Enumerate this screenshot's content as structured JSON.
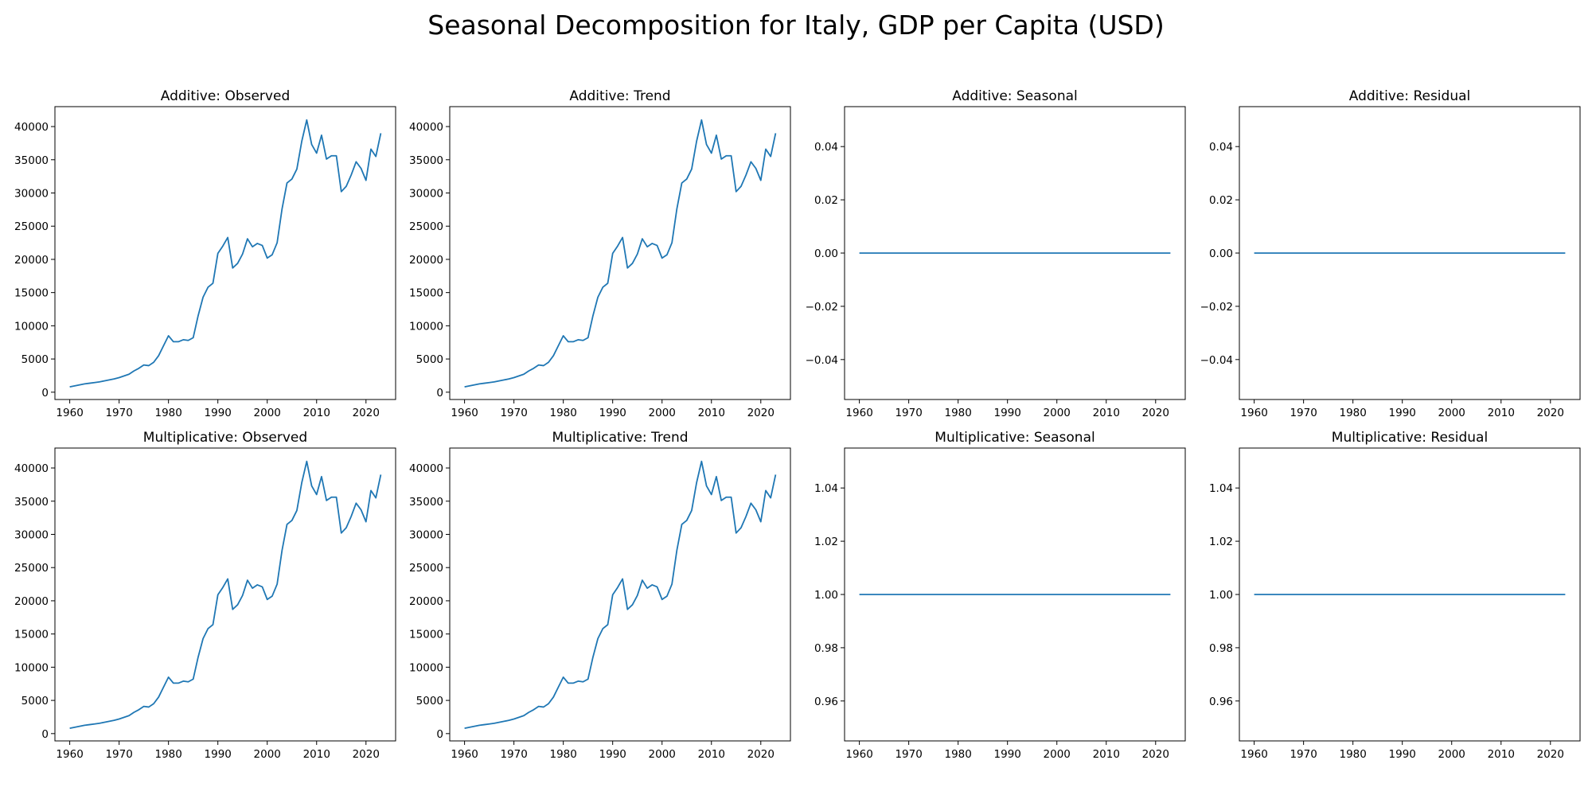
{
  "figure": {
    "title": "Seasonal Decomposition for Italy, GDP per Capita (USD)",
    "line_color": "#1f77b4"
  },
  "chart_data": [
    {
      "type": "line",
      "title": "Additive: Observed",
      "xlabel": "",
      "ylabel": "",
      "xlim": [
        1957,
        2026
      ],
      "ylim": [
        -1100,
        43000
      ],
      "xticks": [
        1960,
        1970,
        1980,
        1990,
        2000,
        2010,
        2020
      ],
      "yticks": [
        0,
        5000,
        10000,
        15000,
        20000,
        25000,
        30000,
        35000,
        40000
      ],
      "ytick_labels": [
        "0",
        "5000",
        "10000",
        "15000",
        "20000",
        "25000",
        "30000",
        "35000",
        "40000"
      ],
      "grid": false,
      "series": [
        {
          "x": [
            1960,
            1961,
            1962,
            1963,
            1964,
            1965,
            1966,
            1967,
            1968,
            1969,
            1970,
            1971,
            1972,
            1973,
            1974,
            1975,
            1976,
            1977,
            1978,
            1979,
            1980,
            1981,
            1982,
            1983,
            1984,
            1985,
            1986,
            1987,
            1988,
            1989,
            1990,
            1991,
            1992,
            1993,
            1994,
            1995,
            1996,
            1997,
            1998,
            1999,
            2000,
            2001,
            2002,
            2003,
            2004,
            2005,
            2006,
            2007,
            2008,
            2009,
            2010,
            2011,
            2012,
            2013,
            2014,
            2015,
            2016,
            2017,
            2018,
            2019,
            2020,
            2021,
            2022,
            2023
          ],
          "values": [
            800,
            950,
            1100,
            1250,
            1350,
            1450,
            1550,
            1700,
            1850,
            2000,
            2200,
            2450,
            2700,
            3200,
            3600,
            4100,
            4000,
            4500,
            5500,
            7000,
            8500,
            7600,
            7600,
            7900,
            7800,
            8200,
            11500,
            14300,
            15800,
            16400,
            20900,
            22000,
            23300,
            18700,
            19400,
            20800,
            23100,
            21900,
            22400,
            22100,
            20200,
            20700,
            22500,
            27600,
            31500,
            32100,
            33600,
            37800,
            41000,
            37300,
            36000,
            38700,
            35100,
            35600,
            35600,
            30200,
            31000,
            32700,
            34700,
            33700,
            31900,
            36600,
            35500,
            39000
          ]
        }
      ]
    },
    {
      "type": "line",
      "title": "Additive: Trend",
      "xlabel": "",
      "ylabel": "",
      "xlim": [
        1957,
        2026
      ],
      "ylim": [
        -1100,
        43000
      ],
      "xticks": [
        1960,
        1970,
        1980,
        1990,
        2000,
        2010,
        2020
      ],
      "yticks": [
        0,
        5000,
        10000,
        15000,
        20000,
        25000,
        30000,
        35000,
        40000
      ],
      "ytick_labels": [
        "0",
        "5000",
        "10000",
        "15000",
        "20000",
        "25000",
        "30000",
        "35000",
        "40000"
      ],
      "grid": false,
      "series": [
        {
          "x": [
            1960,
            1961,
            1962,
            1963,
            1964,
            1965,
            1966,
            1967,
            1968,
            1969,
            1970,
            1971,
            1972,
            1973,
            1974,
            1975,
            1976,
            1977,
            1978,
            1979,
            1980,
            1981,
            1982,
            1983,
            1984,
            1985,
            1986,
            1987,
            1988,
            1989,
            1990,
            1991,
            1992,
            1993,
            1994,
            1995,
            1996,
            1997,
            1998,
            1999,
            2000,
            2001,
            2002,
            2003,
            2004,
            2005,
            2006,
            2007,
            2008,
            2009,
            2010,
            2011,
            2012,
            2013,
            2014,
            2015,
            2016,
            2017,
            2018,
            2019,
            2020,
            2021,
            2022,
            2023
          ],
          "values": [
            800,
            950,
            1100,
            1250,
            1350,
            1450,
            1550,
            1700,
            1850,
            2000,
            2200,
            2450,
            2700,
            3200,
            3600,
            4100,
            4000,
            4500,
            5500,
            7000,
            8500,
            7600,
            7600,
            7900,
            7800,
            8200,
            11500,
            14300,
            15800,
            16400,
            20900,
            22000,
            23300,
            18700,
            19400,
            20800,
            23100,
            21900,
            22400,
            22100,
            20200,
            20700,
            22500,
            27600,
            31500,
            32100,
            33600,
            37800,
            41000,
            37300,
            36000,
            38700,
            35100,
            35600,
            35600,
            30200,
            31000,
            32700,
            34700,
            33700,
            31900,
            36600,
            35500,
            39000
          ]
        }
      ]
    },
    {
      "type": "line",
      "title": "Additive: Seasonal",
      "xlabel": "",
      "ylabel": "",
      "xlim": [
        1957,
        2026
      ],
      "ylim": [
        -0.055,
        0.055
      ],
      "xticks": [
        1960,
        1970,
        1980,
        1990,
        2000,
        2010,
        2020
      ],
      "yticks": [
        -0.04,
        -0.02,
        0,
        0.02,
        0.04
      ],
      "ytick_labels": [
        "−0.04",
        "−0.02",
        "0.00",
        "0.02",
        "0.04"
      ],
      "grid": false,
      "series": [
        {
          "x": [
            1960,
            2023
          ],
          "values": [
            0,
            0
          ]
        }
      ]
    },
    {
      "type": "line",
      "title": "Additive: Residual",
      "xlabel": "",
      "ylabel": "",
      "xlim": [
        1957,
        2026
      ],
      "ylim": [
        -0.055,
        0.055
      ],
      "xticks": [
        1960,
        1970,
        1980,
        1990,
        2000,
        2010,
        2020
      ],
      "yticks": [
        -0.04,
        -0.02,
        0,
        0.02,
        0.04
      ],
      "ytick_labels": [
        "−0.04",
        "−0.02",
        "0.00",
        "0.02",
        "0.04"
      ],
      "grid": false,
      "series": [
        {
          "x": [
            1960,
            2023
          ],
          "values": [
            0,
            0
          ]
        }
      ]
    },
    {
      "type": "line",
      "title": "Multiplicative: Observed",
      "xlabel": "",
      "ylabel": "",
      "xlim": [
        1957,
        2026
      ],
      "ylim": [
        -1100,
        43000
      ],
      "xticks": [
        1960,
        1970,
        1980,
        1990,
        2000,
        2010,
        2020
      ],
      "yticks": [
        0,
        5000,
        10000,
        15000,
        20000,
        25000,
        30000,
        35000,
        40000
      ],
      "ytick_labels": [
        "0",
        "5000",
        "10000",
        "15000",
        "20000",
        "25000",
        "30000",
        "35000",
        "40000"
      ],
      "grid": false,
      "series": [
        {
          "x": [
            1960,
            1961,
            1962,
            1963,
            1964,
            1965,
            1966,
            1967,
            1968,
            1969,
            1970,
            1971,
            1972,
            1973,
            1974,
            1975,
            1976,
            1977,
            1978,
            1979,
            1980,
            1981,
            1982,
            1983,
            1984,
            1985,
            1986,
            1987,
            1988,
            1989,
            1990,
            1991,
            1992,
            1993,
            1994,
            1995,
            1996,
            1997,
            1998,
            1999,
            2000,
            2001,
            2002,
            2003,
            2004,
            2005,
            2006,
            2007,
            2008,
            2009,
            2010,
            2011,
            2012,
            2013,
            2014,
            2015,
            2016,
            2017,
            2018,
            2019,
            2020,
            2021,
            2022,
            2023
          ],
          "values": [
            800,
            950,
            1100,
            1250,
            1350,
            1450,
            1550,
            1700,
            1850,
            2000,
            2200,
            2450,
            2700,
            3200,
            3600,
            4100,
            4000,
            4500,
            5500,
            7000,
            8500,
            7600,
            7600,
            7900,
            7800,
            8200,
            11500,
            14300,
            15800,
            16400,
            20900,
            22000,
            23300,
            18700,
            19400,
            20800,
            23100,
            21900,
            22400,
            22100,
            20200,
            20700,
            22500,
            27600,
            31500,
            32100,
            33600,
            37800,
            41000,
            37300,
            36000,
            38700,
            35100,
            35600,
            35600,
            30200,
            31000,
            32700,
            34700,
            33700,
            31900,
            36600,
            35500,
            39000
          ]
        }
      ]
    },
    {
      "type": "line",
      "title": "Multiplicative: Trend",
      "xlabel": "",
      "ylabel": "",
      "xlim": [
        1957,
        2026
      ],
      "ylim": [
        -1100,
        43000
      ],
      "xticks": [
        1960,
        1970,
        1980,
        1990,
        2000,
        2010,
        2020
      ],
      "yticks": [
        0,
        5000,
        10000,
        15000,
        20000,
        25000,
        30000,
        35000,
        40000
      ],
      "ytick_labels": [
        "0",
        "5000",
        "10000",
        "15000",
        "20000",
        "25000",
        "30000",
        "35000",
        "40000"
      ],
      "grid": false,
      "series": [
        {
          "x": [
            1960,
            1961,
            1962,
            1963,
            1964,
            1965,
            1966,
            1967,
            1968,
            1969,
            1970,
            1971,
            1972,
            1973,
            1974,
            1975,
            1976,
            1977,
            1978,
            1979,
            1980,
            1981,
            1982,
            1983,
            1984,
            1985,
            1986,
            1987,
            1988,
            1989,
            1990,
            1991,
            1992,
            1993,
            1994,
            1995,
            1996,
            1997,
            1998,
            1999,
            2000,
            2001,
            2002,
            2003,
            2004,
            2005,
            2006,
            2007,
            2008,
            2009,
            2010,
            2011,
            2012,
            2013,
            2014,
            2015,
            2016,
            2017,
            2018,
            2019,
            2020,
            2021,
            2022,
            2023
          ],
          "values": [
            800,
            950,
            1100,
            1250,
            1350,
            1450,
            1550,
            1700,
            1850,
            2000,
            2200,
            2450,
            2700,
            3200,
            3600,
            4100,
            4000,
            4500,
            5500,
            7000,
            8500,
            7600,
            7600,
            7900,
            7800,
            8200,
            11500,
            14300,
            15800,
            16400,
            20900,
            22000,
            23300,
            18700,
            19400,
            20800,
            23100,
            21900,
            22400,
            22100,
            20200,
            20700,
            22500,
            27600,
            31500,
            32100,
            33600,
            37800,
            41000,
            37300,
            36000,
            38700,
            35100,
            35600,
            35600,
            30200,
            31000,
            32700,
            34700,
            33700,
            31900,
            36600,
            35500,
            39000
          ]
        }
      ]
    },
    {
      "type": "line",
      "title": "Multiplicative: Seasonal",
      "xlabel": "",
      "ylabel": "",
      "xlim": [
        1957,
        2026
      ],
      "ylim": [
        0.945,
        1.055
      ],
      "xticks": [
        1960,
        1970,
        1980,
        1990,
        2000,
        2010,
        2020
      ],
      "yticks": [
        0.96,
        0.98,
        1.0,
        1.02,
        1.04
      ],
      "ytick_labels": [
        "0.96",
        "0.98",
        "1.00",
        "1.02",
        "1.04"
      ],
      "grid": false,
      "series": [
        {
          "x": [
            1960,
            2023
          ],
          "values": [
            1,
            1
          ]
        }
      ]
    },
    {
      "type": "line",
      "title": "Multiplicative: Residual",
      "xlabel": "",
      "ylabel": "",
      "xlim": [
        1957,
        2026
      ],
      "ylim": [
        0.945,
        1.055
      ],
      "xticks": [
        1960,
        1970,
        1980,
        1990,
        2000,
        2010,
        2020
      ],
      "yticks": [
        0.96,
        0.98,
        1.0,
        1.02,
        1.04
      ],
      "ytick_labels": [
        "0.96",
        "0.98",
        "1.00",
        "1.02",
        "1.04"
      ],
      "grid": false,
      "series": [
        {
          "x": [
            1960,
            2023
          ],
          "values": [
            1,
            1
          ]
        }
      ]
    }
  ]
}
